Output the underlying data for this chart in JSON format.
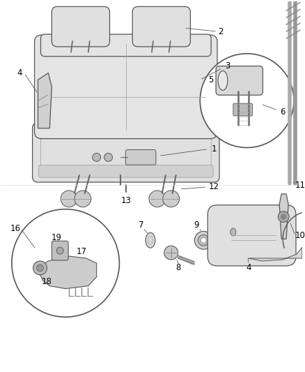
{
  "bg_color": "#ffffff",
  "lc": "#555555",
  "lc_dark": "#333333",
  "fig_width": 4.38,
  "fig_height": 5.33,
  "dpi": 100,
  "seat_fill": "#e8e8e8",
  "cushion_fill": "#d8d8d8",
  "white": "#ffffff"
}
